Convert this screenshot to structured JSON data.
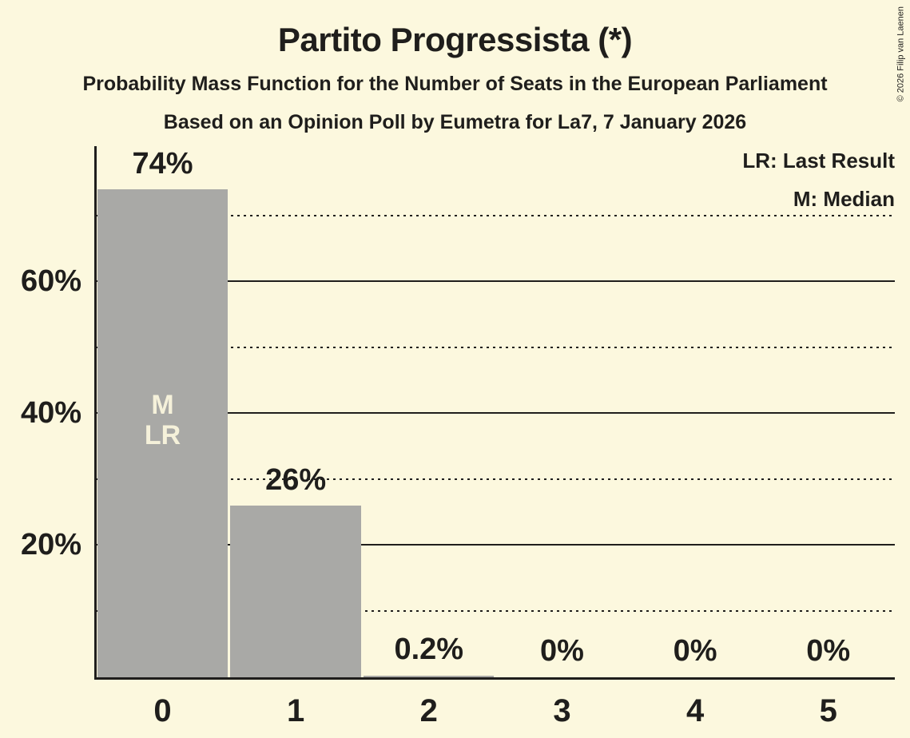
{
  "header": {
    "title": "Partito Progressista (*)",
    "subtitle_line1": "Probability Mass Function for the Number of Seats in the European Parliament",
    "subtitle_line2": "Based on an Opinion Poll by Eumetra for La7, 7 January 2026"
  },
  "legend": {
    "last_result": "LR: Last Result",
    "median": "M: Median"
  },
  "copyright": "© 2026 Filip van Laenen",
  "colors": {
    "background": "#FCF8DE",
    "bar": "#A9A9A6",
    "ink": "#1F1E1C",
    "bar_annotation_text": "#F5F1DA"
  },
  "chart_data": {
    "type": "bar",
    "title": "Partito Progressista (*)",
    "categories": [
      "0",
      "1",
      "2",
      "3",
      "4",
      "5"
    ],
    "values": [
      74,
      26,
      0.2,
      0,
      0,
      0
    ],
    "value_labels": [
      "74%",
      "26%",
      "0.2%",
      "0%",
      "0%",
      "0%"
    ],
    "bar_annotations": {
      "0": [
        "M",
        "LR"
      ]
    },
    "y_axis": {
      "unit": "percent",
      "tick_labels": [
        {
          "pct": 20,
          "label": "20%"
        },
        {
          "pct": 40,
          "label": "40%"
        },
        {
          "pct": 60,
          "label": "60%"
        }
      ],
      "major_gridlines_pct": [
        20,
        40,
        60
      ],
      "minor_gridlines_pct": [
        10,
        30,
        50,
        70
      ],
      "ylim": [
        0,
        80.5
      ]
    },
    "grid": true,
    "legend_position": "top-right",
    "gridlines_behind_bars": true
  }
}
